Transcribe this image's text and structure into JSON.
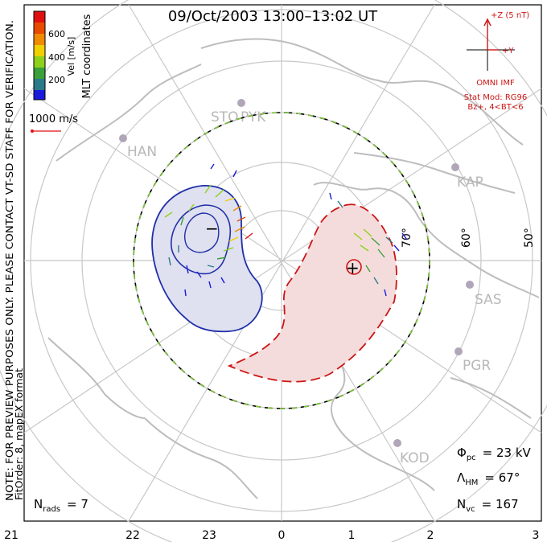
{
  "header": {
    "title": "09/Oct/2003 13:00–13:02 UT"
  },
  "colorbar": {
    "ticks": [
      "600",
      "400",
      "200"
    ],
    "label": "Vel [m/s]",
    "colors": [
      "#1a1adb",
      "#2a7a8a",
      "#3aa13a",
      "#8fd11a",
      "#f0d000",
      "#f08a00",
      "#e84a00",
      "#e01010"
    ]
  },
  "coord_label": "MLT coordinates",
  "ref_vector_label": "1000 m/s",
  "side_note": {
    "line1": "NOTE: FOR PREVIEW PURPOSES ONLY. PLEASE CONTACT VT-SD STAFF FOR VERIFICATION.",
    "line2": "FitOrder: 8, mapEX format"
  },
  "imf": {
    "z_label": "+Z (5 nT)",
    "y_label": "+Y",
    "source": "OMNI IMF",
    "model": "Stat Mod: RG96",
    "condition": "Bz+, 4<BT<6"
  },
  "stations": [
    "STO",
    "PYK",
    "HAN",
    "KAP",
    "SAS",
    "PGR",
    "KOD"
  ],
  "latitude_labels": [
    "70°",
    "60°",
    "50°"
  ],
  "mlt_labels": [
    "21",
    "22",
    "23",
    "0",
    "1",
    "2",
    "3"
  ],
  "potential_markers": {
    "minimum": "−",
    "maximum": "+"
  },
  "stats": {
    "phi_symbol": "Φ",
    "phi_sub": "pc",
    "phi_value": "= 23 kV",
    "lambda_symbol": "Λ",
    "lambda_sub": "HM",
    "lambda_value": "= 67°",
    "nvc_symbol": "N",
    "nvc_sub": "vc",
    "nvc_value": "= 167",
    "nrads_symbol": "N",
    "nrads_sub": "rads",
    "nrads_value": "= 7"
  }
}
